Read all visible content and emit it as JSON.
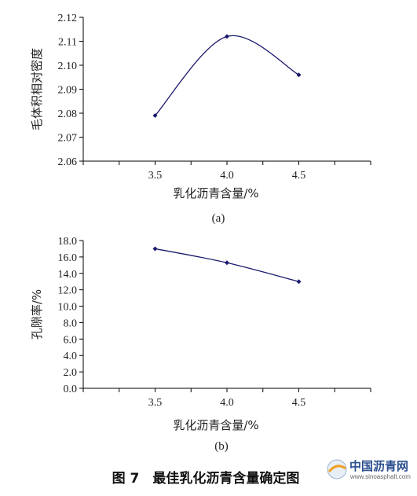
{
  "chart_data": [
    {
      "type": "line",
      "ylabel": "毛体积相对密度",
      "xlabel": "乳化沥青含量/%",
      "x": [
        3.5,
        4.0,
        4.5
      ],
      "x_ticks": [
        "3.5",
        "4.0",
        "4.5"
      ],
      "xlim": [
        3.0,
        5.0
      ],
      "y_ticks": [
        "2.06",
        "2.07",
        "2.08",
        "2.09",
        "2.10",
        "2.11",
        "2.12"
      ],
      "ylim": [
        2.06,
        2.12
      ],
      "series": [
        {
          "values": [
            2.079,
            2.112,
            2.096
          ]
        }
      ],
      "sublabel": "(a)",
      "grid": false,
      "smooth": true
    },
    {
      "type": "line",
      "ylabel": "孔隙率/%",
      "xlabel": "乳化沥青含量/%",
      "x": [
        3.5,
        4.0,
        4.5
      ],
      "x_ticks": [
        "3.5",
        "4.0",
        "4.5"
      ],
      "xlim": [
        3.0,
        5.0
      ],
      "y_ticks": [
        "0.0",
        "2.0",
        "4.0",
        "6.0",
        "8.0",
        "10.0",
        "12.0",
        "14.0",
        "16.0",
        "18.0"
      ],
      "ylim": [
        0,
        18
      ],
      "series": [
        {
          "values": [
            17.0,
            15.3,
            13.0
          ]
        }
      ],
      "sublabel": "(b)",
      "grid": false,
      "smooth": true
    }
  ],
  "caption": "图 7　最佳乳化沥青含量确定图",
  "watermark": {
    "text": "中国沥青网",
    "url": "www.sinoasphalt.com"
  },
  "colors": {
    "line": "#1a1a6e",
    "marker": "#1a1a6e",
    "axis": "#000000"
  }
}
